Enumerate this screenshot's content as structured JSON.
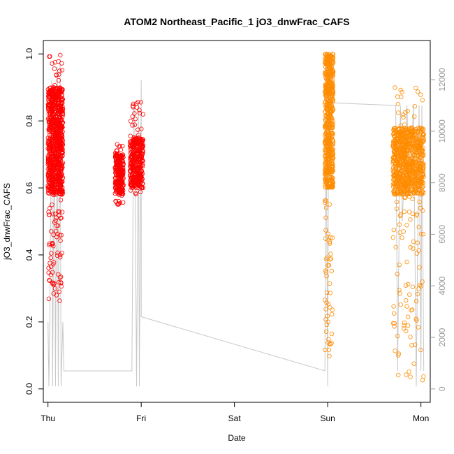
{
  "chart_data": {
    "type": "scatter",
    "title": "ATOM2 Northeast_Pacific_1 jO3_dnwFrac_CAFS",
    "xlabel": "Date",
    "ylabel": "jO3_dnwFrac_CAFS",
    "x_ticks": [
      "Thu",
      "Fri",
      "Sat",
      "Sun",
      "Mon"
    ],
    "xlim": [
      -0.05,
      4.1
    ],
    "ylim": [
      -0.04,
      1.04
    ],
    "y_ticks": [
      0.0,
      0.2,
      0.4,
      0.6,
      0.8,
      1.0
    ],
    "y_tick_labels": [
      "0.0",
      "0.2",
      "0.4",
      "0.6",
      "0.8",
      "1.0"
    ],
    "y2lim": [
      -520,
      13520
    ],
    "y2_ticks": [
      0,
      2000,
      4000,
      6000,
      8000,
      10000,
      12000
    ],
    "y2_tick_labels": [
      "0",
      "2000",
      "4000",
      "6000",
      "8000",
      "10000",
      "12000"
    ],
    "grid": false,
    "colors": {
      "series1": "#ff0000",
      "series2": "#ff8c00",
      "altitude": "#c8c8c8"
    },
    "series": [
      {
        "color": "#ff0000",
        "clusters": [
          {
            "x": [
              0.0,
              0.16
            ],
            "ylo": 0.26,
            "yhi": 1.0,
            "core": [
              0.58,
              0.9
            ],
            "n": 900
          },
          {
            "x": [
              0.72,
              0.81
            ],
            "ylo": 0.55,
            "yhi": 0.73,
            "core": [
              0.58,
              0.7
            ],
            "n": 250
          },
          {
            "x": [
              0.88,
              1.02
            ],
            "ylo": 0.57,
            "yhi": 0.88,
            "core": [
              0.6,
              0.75
            ],
            "n": 350
          }
        ]
      },
      {
        "color": "#ff8c00",
        "clusters": [
          {
            "x": [
              2.97,
              3.06
            ],
            "ylo": 0.09,
            "yhi": 1.0,
            "core": [
              0.6,
              1.0
            ],
            "n": 600
          },
          {
            "x": [
              3.7,
              4.03
            ],
            "ylo": 0.0,
            "yhi": 0.9,
            "core": [
              0.58,
              0.78
            ],
            "n": 900
          }
        ]
      }
    ],
    "altitude_series": {
      "x": [
        0.0,
        0.01,
        0.02,
        0.04,
        0.05,
        0.07,
        0.08,
        0.1,
        0.11,
        0.13,
        0.14,
        0.16,
        0.17,
        0.9,
        0.92,
        0.93,
        0.95,
        0.97,
        0.98,
        1.0,
        1.0,
        2.97,
        2.98,
        3.0,
        3.01,
        3.02,
        3.03,
        3.04,
        3.06,
        3.73,
        3.75,
        3.78,
        3.8,
        3.85,
        3.88,
        3.92,
        3.95,
        3.98,
        4.0,
        4.01,
        4.03
      ],
      "values": [
        2600,
        100,
        2700,
        12000,
        100,
        11500,
        100,
        12500,
        100,
        12800,
        100,
        2600,
        700,
        700,
        11000,
        11000,
        100,
        11000,
        100,
        12000,
        2800,
        700,
        12500,
        100,
        12500,
        8000,
        11000,
        11100,
        11100,
        11000,
        700,
        11000,
        6500,
        11000,
        7500,
        11000,
        100,
        11000,
        700,
        11000,
        700
      ]
    }
  }
}
